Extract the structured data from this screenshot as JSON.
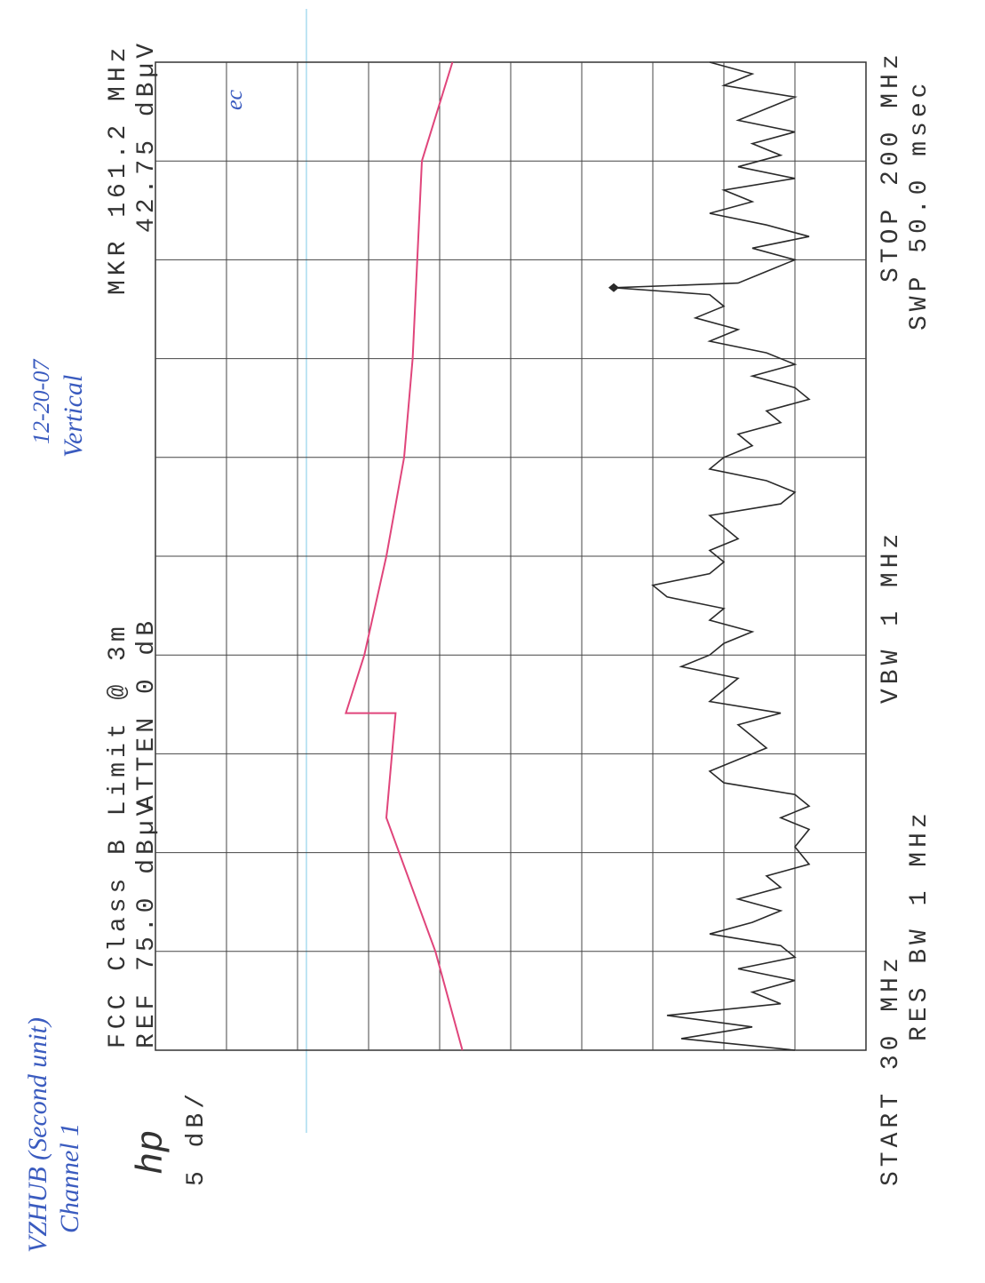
{
  "chart_data": {
    "type": "line",
    "title": "FCC Class B Limit @ 3m",
    "reference": "REF 75.0 dBµV",
    "atten": "ATTEN 0 dB",
    "scale": "5 dB/",
    "logo": "hp",
    "start": "START 30 MHz",
    "stop": "STOP 200 MHz",
    "rbw": "RES BW 1 MHz",
    "vbw": "VBW 1 MHz",
    "sweep": "SWP 50.0 msec",
    "xlim": [
      30,
      200
    ],
    "ylim": [
      25,
      75
    ],
    "grid": true,
    "marker": {
      "x": 161.2,
      "y": 42.75,
      "label": "MKR 161.2 MHz",
      "value_label": "42.75 dBµV"
    },
    "series": [
      {
        "color": "#2a2a2a",
        "x": [
          30,
          32,
          34,
          36,
          38,
          40,
          42,
          44,
          46,
          48,
          50,
          52,
          54,
          56,
          58,
          60,
          62,
          65,
          68,
          70,
          72,
          74,
          76,
          78,
          80,
          82,
          84,
          86,
          88,
          90,
          92,
          94,
          96,
          98,
          100,
          102,
          104,
          106,
          108,
          110,
          112,
          114,
          116,
          118,
          120,
          122,
          124,
          126,
          128,
          130,
          132,
          134,
          136,
          138,
          140,
          142,
          144,
          146,
          148,
          150,
          152,
          154,
          156,
          158,
          160,
          161.2,
          162,
          164,
          166,
          168,
          170,
          172,
          174,
          176,
          178,
          180,
          182,
          184,
          186,
          188,
          190,
          192,
          194,
          196,
          198,
          200
        ],
        "values": [
          30,
          38,
          33,
          39,
          31,
          33,
          30,
          34,
          30,
          31,
          36,
          33,
          31,
          34,
          31,
          32,
          29,
          30,
          29,
          31,
          29,
          30,
          35,
          36,
          34,
          32,
          33,
          34,
          31,
          36,
          35,
          34,
          38,
          36,
          35,
          33,
          36,
          35,
          39,
          40,
          36,
          35,
          36,
          34,
          35,
          36,
          31,
          30,
          32,
          36,
          35,
          33,
          34,
          31,
          32,
          29,
          30,
          33,
          30,
          32,
          36,
          34,
          37,
          35,
          36,
          42.75,
          34,
          32,
          30,
          33,
          29,
          32,
          36,
          33,
          35,
          30,
          34,
          31,
          33,
          30,
          34,
          32,
          30,
          35,
          33,
          36
        ]
      },
      {
        "color": "#e0457b",
        "x": [
          30,
          47,
          70,
          88,
          88,
          98,
          115,
          132,
          149,
          183,
          200
        ],
        "values": [
          53.4,
          55.3,
          58.75,
          58.1,
          61.6,
          60.3,
          58.75,
          57.5,
          56.9,
          56.25,
          54.1
        ]
      }
    ]
  },
  "handwriting": {
    "unit": "VZHUB (Second unit)",
    "channel": "Channel 1",
    "date": "12-20-07",
    "polarization": "Vertical",
    "initials": "ec"
  }
}
